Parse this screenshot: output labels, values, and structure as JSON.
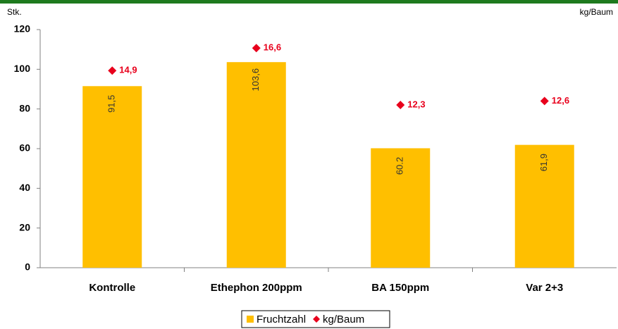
{
  "chart_data": {
    "type": "bar",
    "ylabel": "Stk.",
    "y2label": "kg/Baum",
    "categories": [
      "Kontrolle",
      "Ethephon 200ppm",
      "BA 150ppm",
      "Var 2+3"
    ],
    "series": [
      {
        "name": "Fruchtzahl",
        "type": "bar",
        "color": "#ffbf00",
        "values": [
          91.5,
          103.6,
          60.2,
          61.9
        ],
        "value_labels": [
          "91,5",
          "103,6",
          "60.2",
          "61,9"
        ]
      },
      {
        "name": "kg/Baum",
        "type": "scatter",
        "axis": "y2",
        "color": "#e8001c",
        "values": [
          14.9,
          16.6,
          12.3,
          12.6
        ],
        "value_labels": [
          "14,9",
          "16,6",
          "12,3",
          "12,6"
        ]
      }
    ],
    "ylim": [
      0,
      120
    ],
    "yticks": [
      0,
      20,
      40,
      60,
      80,
      100,
      120
    ],
    "y2lim": [
      0,
      18
    ],
    "legend": "bottom"
  }
}
